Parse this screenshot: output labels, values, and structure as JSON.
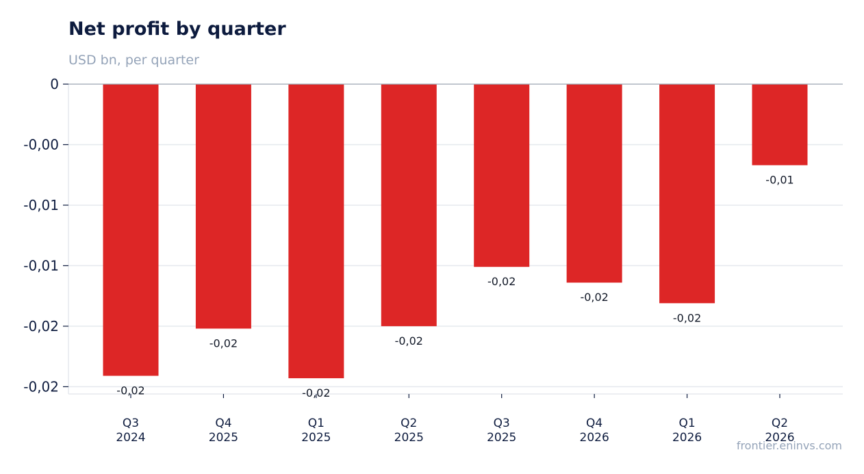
{
  "title": "Net profit by quarter",
  "subtitle": "USD bn, per quarter",
  "source": "frontier.eninvs.com",
  "colors": {
    "bar": "#dd2626",
    "grid": "#e5e9ee",
    "zero": "#9aa5b1",
    "text": "#0d1b3e"
  },
  "chart_data": {
    "type": "bar",
    "categories": [
      [
        "Q3",
        "2024"
      ],
      [
        "Q4",
        "2025"
      ],
      [
        "Q1",
        "2025"
      ],
      [
        "Q2",
        "2025"
      ],
      [
        "Q3",
        "2025"
      ],
      [
        "Q4",
        "2026"
      ],
      [
        "Q1",
        "2026"
      ],
      [
        "Q2",
        "2026"
      ]
    ],
    "values": [
      -0.0241,
      -0.0202,
      -0.0243,
      -0.02,
      -0.0151,
      -0.0164,
      -0.0181,
      -0.0067
    ],
    "data_labels": [
      "-0,02",
      "-0,02",
      "-0,02",
      "-0,02",
      "-0,02",
      "-0,02",
      "-0,02",
      "-0,01"
    ],
    "y_ticks": [
      0,
      -0.005,
      -0.01,
      -0.015,
      -0.02,
      -0.025
    ],
    "y_tick_labels": [
      "0",
      "-0,00",
      "-0,01",
      "-0,01",
      "-0,02",
      "-0,02"
    ],
    "ylim": [
      -0.0256,
      0
    ],
    "grid": true,
    "legend": "none"
  }
}
